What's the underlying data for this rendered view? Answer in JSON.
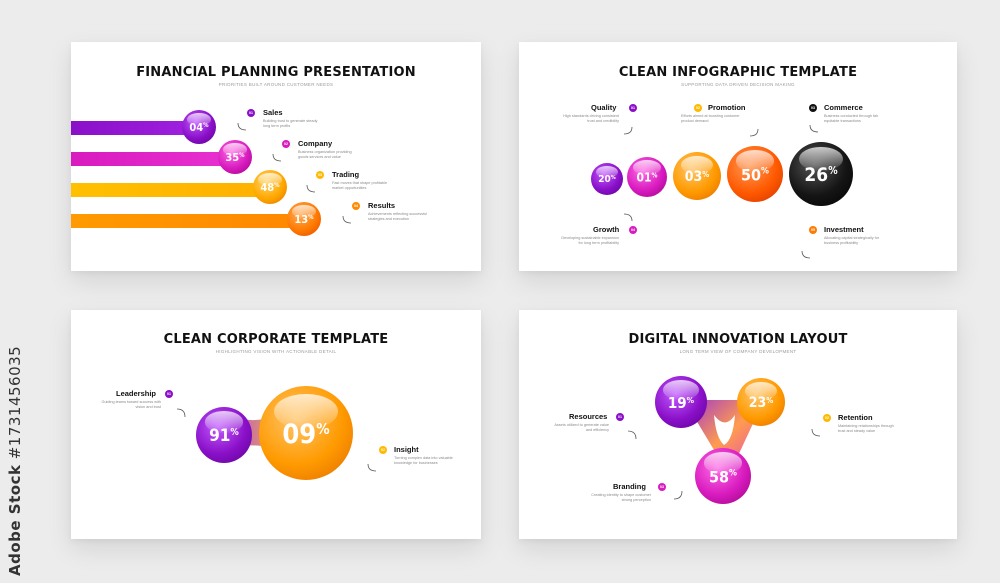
{
  "stock_label": {
    "brand": "Adobe Stock",
    "id": "#1731456035"
  },
  "card1": {
    "title": "FINANCIAL PLANNING PRESENTATION",
    "subtitle": "PRIORITIES BUILT AROUND CUSTOMER NEEDS",
    "items": [
      {
        "value": "04",
        "label": "Sales",
        "badge": "01",
        "color": "#8a10c8",
        "desc": "Building trust to generate steady long term profits"
      },
      {
        "value": "35",
        "label": "Company",
        "badge": "02",
        "color": "#d81bbf",
        "desc": "Business organization providing goods services and value"
      },
      {
        "value": "48",
        "label": "Trading",
        "badge": "03",
        "color": "#ffba00",
        "desc": "Fast moves that shape profitable market opportunities"
      },
      {
        "value": "13",
        "label": "Results",
        "badge": "04",
        "color": "#ff8a00",
        "desc": "Achievements reflecting successful strategies and execution"
      }
    ]
  },
  "card2": {
    "title": "CLEAN INFOGRAPHIC TEMPLATE",
    "subtitle": "SUPPORTING DATA DRIVEN DECISION MAKING",
    "spheres": [
      {
        "value": "20",
        "color": "#8a10c8"
      },
      {
        "value": "01",
        "color": "#d81bbf"
      },
      {
        "value": "03",
        "color": "#ff9a00"
      },
      {
        "value": "50",
        "color": "#ff5a00"
      },
      {
        "value": "26",
        "color": "#111111"
      }
    ],
    "items": [
      {
        "label": "Quality",
        "badge": "01",
        "color": "#8a10c8",
        "desc": "High standards driving consistent trust and credibility"
      },
      {
        "label": "Promotion",
        "badge": "02",
        "color": "#ffba00",
        "desc": "Efforts aimed at boosting customer product demand"
      },
      {
        "label": "Commerce",
        "badge": "03",
        "color": "#111111",
        "desc": "Business conducted through fair equitable transactions"
      },
      {
        "label": "Growth",
        "badge": "04",
        "color": "#d81bbf",
        "desc": "Developing sustainable expansion for long term profitability"
      },
      {
        "label": "Investment",
        "badge": "05",
        "color": "#ff7a00",
        "desc": "Allocating capital strategically for business profitability"
      }
    ]
  },
  "card3": {
    "title": "CLEAN CORPORATE TEMPLATE",
    "subtitle": "HIGHLIGHTING VISION WITH ACTIONABLE DETAIL",
    "spheres": [
      {
        "value": "91",
        "color": "#8a10c8"
      },
      {
        "value": "09",
        "color": "#ff9a00"
      }
    ],
    "items": [
      {
        "label": "Leadership",
        "badge": "01",
        "color": "#8a10c8",
        "desc": "Guiding teams toward success with vision and trust"
      },
      {
        "label": "Insight",
        "badge": "02",
        "color": "#ffba00",
        "desc": "Turning complex data into valuable knowledge for businesses"
      }
    ]
  },
  "card4": {
    "title": "DIGITAL INNOVATION LAYOUT",
    "subtitle": "LONG TERM VIEW OF COMPANY DEVELOPMENT",
    "spheres": [
      {
        "value": "19",
        "color": "#8a10c8"
      },
      {
        "value": "23",
        "color": "#ff9a00"
      },
      {
        "value": "58",
        "color": "#d81bbf"
      }
    ],
    "items": [
      {
        "label": "Resources",
        "badge": "01",
        "color": "#8a10c8",
        "desc": "Assets utilized to generate value and efficiency"
      },
      {
        "label": "Retention",
        "badge": "02",
        "color": "#ffba00",
        "desc": "Maintaining relationships through trust and steady value"
      },
      {
        "label": "Branding",
        "badge": "03",
        "color": "#d81bbf",
        "desc": "Creating identity to shape customer strong perception"
      }
    ]
  }
}
